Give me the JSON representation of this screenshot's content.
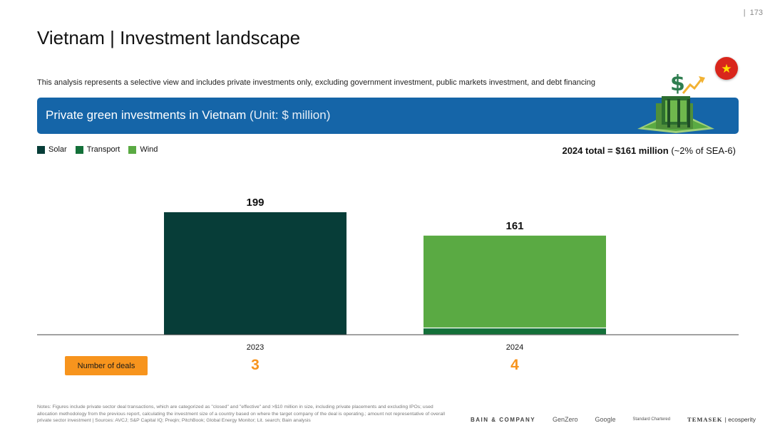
{
  "page": {
    "number": "173",
    "title": "Vietnam | Investment landscape",
    "subtitle": "This analysis represents a selective view and includes private investments only, excluding government investment, public markets investment, and debt financing"
  },
  "banner": {
    "title": "Private green investments in Vietnam",
    "unit": "(Unit: $ million)"
  },
  "flag": {
    "star": "★",
    "icon": "vietnam-flag-icon"
  },
  "total": {
    "label": "2024 total = $161 million",
    "note": "(~2% of SEA-6)"
  },
  "deals": {
    "label": "Number of deals",
    "values": [
      "3",
      "4"
    ]
  },
  "notes": "Notes: Figures include private sector deal transactions, which are categorized as \"closed\" and \"effective\" and >$10 million in size, including private placements and excluding IPOs; used allocation methodology from the previous report, calculating the investment size of a country based on where the target company of the deal is operating.; amount not representative of overall private sector investment | Sources: AVCJ; S&P Capital IQ; Preqin; PitchBook; Global Energy Monitor; Lit. search; Bain analysis",
  "logos": {
    "bain": "BAIN & COMPANY",
    "genzero": "GenZero",
    "google": "Google",
    "standard_chartered": "Standard Chartered",
    "temasek": "TEMASEK",
    "ecosperity": "| ecosperity"
  },
  "colors": {
    "solar": "#073d38",
    "transport": "#137039",
    "wind": "#5aaa43",
    "banner": "#1565a8",
    "deals": "#f7941d"
  },
  "chart_data": {
    "type": "bar",
    "stacked": true,
    "categories": [
      "2023",
      "2024"
    ],
    "series": [
      {
        "name": "Solar",
        "color": "#073d38",
        "values": [
          199,
          0
        ]
      },
      {
        "name": "Transport",
        "color": "#137039",
        "values": [
          0,
          11
        ]
      },
      {
        "name": "Wind",
        "color": "#5aaa43",
        "values": [
          0,
          150
        ]
      }
    ],
    "totals": [
      199,
      161
    ],
    "total_labels": [
      "199",
      "161"
    ],
    "title": "Private green investments in Vietnam",
    "unit": "(Unit: $ million)",
    "ylim": [
      0,
      220
    ],
    "grid": false,
    "legend_position": "top-left"
  }
}
